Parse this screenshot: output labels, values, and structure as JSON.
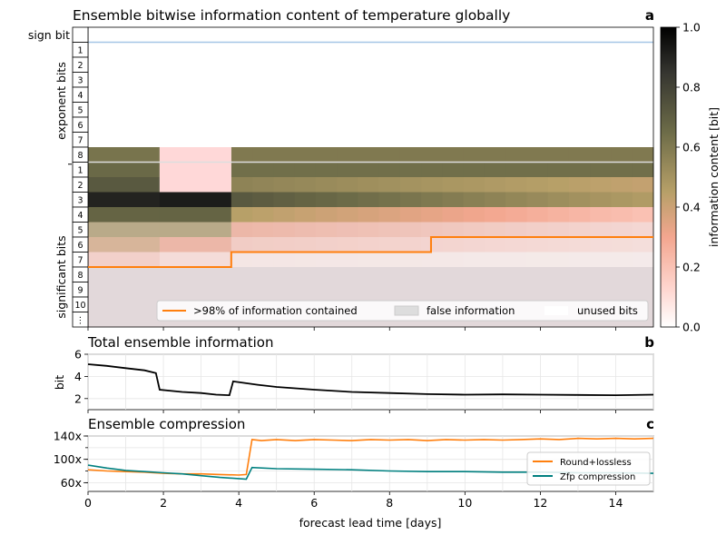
{
  "chart_data": [
    {
      "type": "heatmap",
      "title": "Ensemble bitwise information content of temperature globally",
      "panel_label": "a",
      "y_groups": [
        "sign bit",
        "exponent bits",
        "significant bits"
      ],
      "exponent_bit_labels": [
        "1",
        "2",
        "3",
        "4",
        "5",
        "6",
        "7",
        "8"
      ],
      "mantissa_bit_labels": [
        "1",
        "2",
        "3",
        "4",
        "5",
        "6",
        "7",
        "8",
        "9",
        "10",
        "⋮"
      ],
      "colorbar": {
        "label": "information content [bit]",
        "range": [
          0,
          1
        ],
        "ticks": [
          "0.0",
          "0.2",
          "0.4",
          "0.6",
          "0.8",
          "1.0"
        ],
        "colors": [
          "#ffffff",
          "#ffd8d2",
          "#f3a68f",
          "#b7a068",
          "#6d6c48",
          "#353530",
          "#000000"
        ]
      },
      "time_segment_days": [
        0,
        1.9,
        3.8,
        15
      ],
      "rows": [
        {
          "bit": "exponent 8",
          "values": [
            0.62,
            0.0,
            0.6
          ],
          "trend": 0.0
        },
        {
          "bit": "mantissa 1",
          "values": [
            0.66,
            0.0,
            0.64
          ],
          "trend": 0.0
        },
        {
          "bit": "mantissa 2",
          "values": [
            0.72,
            0.0,
            0.56
          ],
          "trend": -0.25
        },
        {
          "bit": "mantissa 3",
          "values": [
            0.9,
            0.92,
            0.72
          ],
          "trend": -0.35
        },
        {
          "bit": "mantissa 4",
          "values": [
            0.68,
            0.68,
            0.45
          ],
          "trend": -0.55
        },
        {
          "bit": "mantissa 5",
          "values": [
            0.5,
            0.5,
            0.3
          ],
          "trend": -0.6
        },
        {
          "bit": "mantissa 6",
          "values": [
            0.38,
            0.3,
            0.18
          ],
          "trend": -0.5
        },
        {
          "bit": "mantissa 7",
          "values": [
            0.16,
            0.1,
            0.05
          ],
          "trend": -0.4
        }
      ],
      "information_line_98pct": {
        "x": [
          0,
          3.8,
          3.8,
          9.1,
          9.1,
          15
        ],
        "y_row_boundary": [
          7.5,
          7.5,
          6.5,
          6.5,
          5.5,
          5.5
        ]
      },
      "legend": {
        "placement": "lower-right",
        "entries": [
          {
            "label": ">98% of information contained",
            "color": "#ff7f0e",
            "kind": "line"
          },
          {
            "label": "false information",
            "color": "#dddddd",
            "kind": "patch"
          },
          {
            "label": "unused bits",
            "color": "#ffffff",
            "kind": "patch"
          }
        ]
      },
      "false_information_color": "#e0d6d8"
    },
    {
      "type": "line",
      "title": "Total ensemble information",
      "panel_label": "b",
      "ylabel": "bit",
      "ylim": [
        1,
        6
      ],
      "yticks": [
        "2",
        "4",
        "6"
      ],
      "series": [
        {
          "color": "#000000",
          "x": [
            0,
            0.5,
            1.0,
            1.5,
            1.8,
            1.9,
            2.5,
            3.0,
            3.4,
            3.75,
            3.85,
            4.5,
            5.0,
            6.0,
            7.0,
            8.0,
            9.0,
            10.0,
            11.0,
            12.0,
            13.0,
            14.0,
            15.0
          ],
          "y": [
            5.1,
            4.95,
            4.75,
            4.55,
            4.3,
            2.8,
            2.6,
            2.5,
            2.35,
            2.3,
            3.55,
            3.25,
            3.05,
            2.8,
            2.6,
            2.5,
            2.4,
            2.35,
            2.38,
            2.35,
            2.33,
            2.3,
            2.35
          ]
        }
      ]
    },
    {
      "type": "line",
      "title": "Ensemble compression",
      "panel_label": "c",
      "xlabel": "forecast lead time [days]",
      "xlim": [
        0,
        15
      ],
      "xticks": [
        "0",
        "2",
        "4",
        "6",
        "8",
        "10",
        "12",
        "14"
      ],
      "ylim": [
        45,
        140
      ],
      "yticks": [
        "60x",
        "100x",
        "140x"
      ],
      "series": [
        {
          "name": "Round+lossless",
          "color": "#ff7f0e",
          "x": [
            0,
            0.5,
            1.0,
            1.5,
            2.0,
            2.5,
            3.0,
            3.5,
            4.0,
            4.2,
            4.35,
            4.6,
            5.0,
            5.5,
            6.0,
            6.5,
            7.0,
            7.5,
            8.0,
            8.5,
            9.0,
            9.5,
            10.0,
            10.5,
            11.0,
            11.5,
            12.0,
            12.5,
            13.0,
            13.5,
            14.0,
            14.5,
            15.0
          ],
          "y": [
            82,
            80,
            79,
            78,
            76,
            75,
            75,
            74,
            73,
            74,
            134,
            132,
            134,
            132,
            134,
            133,
            132,
            134,
            133,
            134,
            132,
            134,
            133,
            134,
            133,
            134,
            135,
            134,
            136,
            135,
            136,
            135,
            136
          ]
        },
        {
          "name": "Zfp compression",
          "color": "#008080",
          "x": [
            0,
            0.5,
            1.0,
            1.5,
            2.0,
            2.5,
            3.0,
            3.5,
            4.0,
            4.2,
            4.35,
            5.0,
            6.0,
            7.0,
            8.0,
            9.0,
            10.0,
            11.0,
            12.0,
            13.0,
            14.0,
            15.0
          ],
          "y": [
            90,
            85,
            81,
            79,
            77,
            75,
            72,
            69,
            67,
            66,
            86,
            84,
            83,
            82,
            80,
            79,
            79,
            78,
            78,
            77,
            77,
            76
          ]
        }
      ],
      "legend": {
        "placement": "right"
      }
    }
  ]
}
